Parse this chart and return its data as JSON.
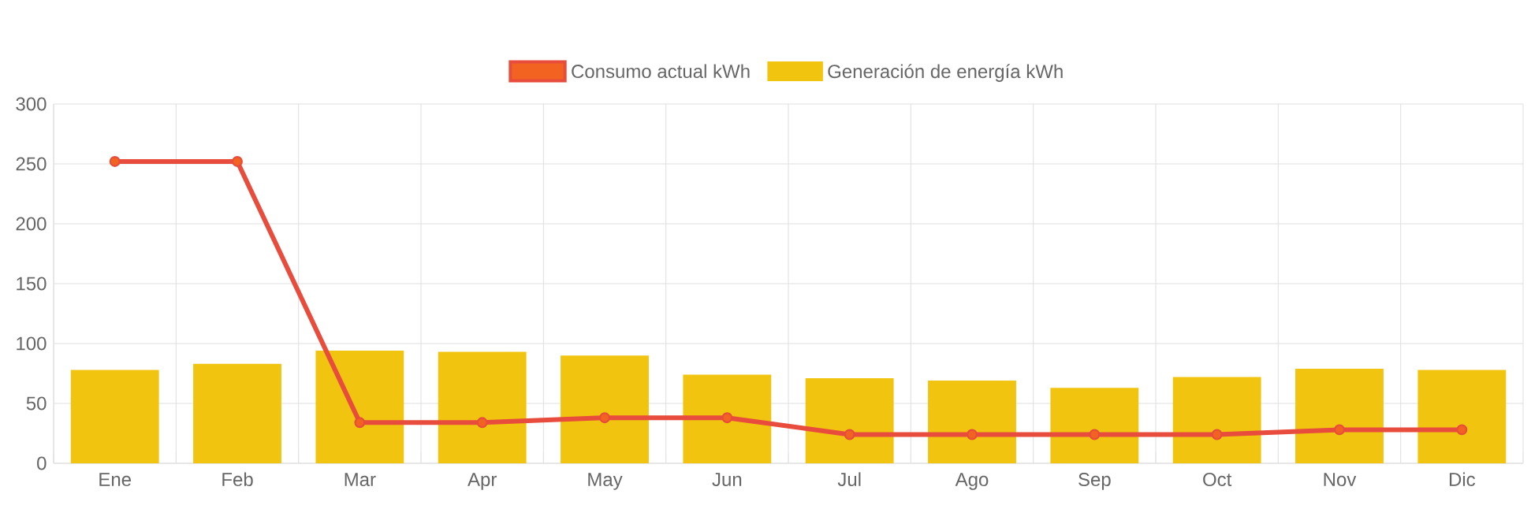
{
  "chart_data": {
    "type": "bar",
    "categories": [
      "Ene",
      "Feb",
      "Mar",
      "Apr",
      "May",
      "Jun",
      "Jul",
      "Ago",
      "Sep",
      "Oct",
      "Nov",
      "Dic"
    ],
    "series": [
      {
        "name": "Consumo actual kWh",
        "type": "line",
        "color": "#e74c3c",
        "marker": "circle",
        "values": [
          252,
          252,
          34,
          34,
          38,
          38,
          24,
          24,
          24,
          24,
          28,
          28
        ]
      },
      {
        "name": "Generación de energía kWh",
        "color": "#f1c40f",
        "values": [
          78,
          83,
          94,
          93,
          90,
          74,
          71,
          69,
          63,
          72,
          79,
          78
        ]
      }
    ],
    "ylim": [
      0,
      300
    ],
    "yticks": [
      0,
      50,
      100,
      150,
      200,
      250,
      300
    ],
    "grid": true,
    "legend": "top"
  }
}
